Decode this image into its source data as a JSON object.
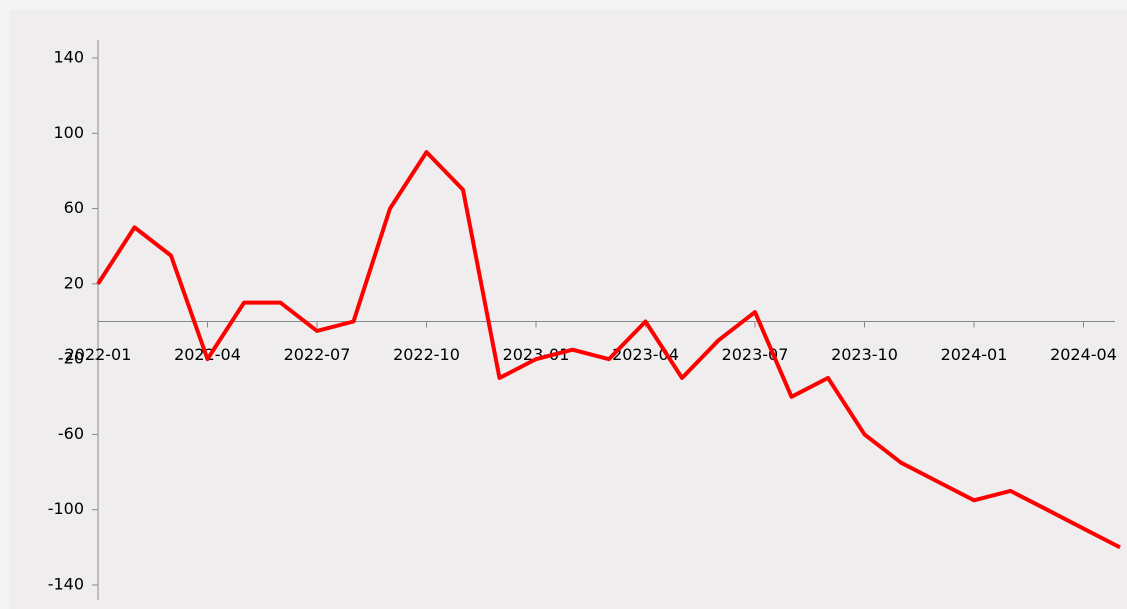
{
  "chart_data": {
    "type": "line",
    "x": [
      "2022-01",
      "2022-02",
      "2022-03",
      "2022-04",
      "2022-05",
      "2022-06",
      "2022-07",
      "2022-08",
      "2022-09",
      "2022-10",
      "2022-11",
      "2022-12",
      "2023-01",
      "2023-02",
      "2023-03",
      "2023-04",
      "2023-05",
      "2023-06",
      "2023-07",
      "2023-08",
      "2023-09",
      "2023-10",
      "2023-11",
      "2023-12",
      "2024-01",
      "2024-02",
      "2024-03",
      "2024-04",
      "2024-05"
    ],
    "series": [
      {
        "color": "#ff0000",
        "values": [
          20,
          50,
          35,
          -20,
          10,
          10,
          -5,
          0,
          60,
          90,
          70,
          -30,
          -20,
          -15,
          -20,
          0,
          -30,
          -10,
          5,
          -40,
          -30,
          -60,
          -75,
          -85,
          -95,
          -90,
          -100,
          -110,
          -120
        ]
      }
    ],
    "xticks": [
      "2022-01",
      "2022-04",
      "2022-07",
      "2022-10",
      "2023-01",
      "2023-04",
      "2023-07",
      "2023-10",
      "2024-01",
      "2024-04"
    ],
    "ylim": [
      -140,
      140
    ],
    "yticks": [
      -140,
      -100,
      -60,
      -20,
      20,
      60,
      100,
      140
    ]
  }
}
